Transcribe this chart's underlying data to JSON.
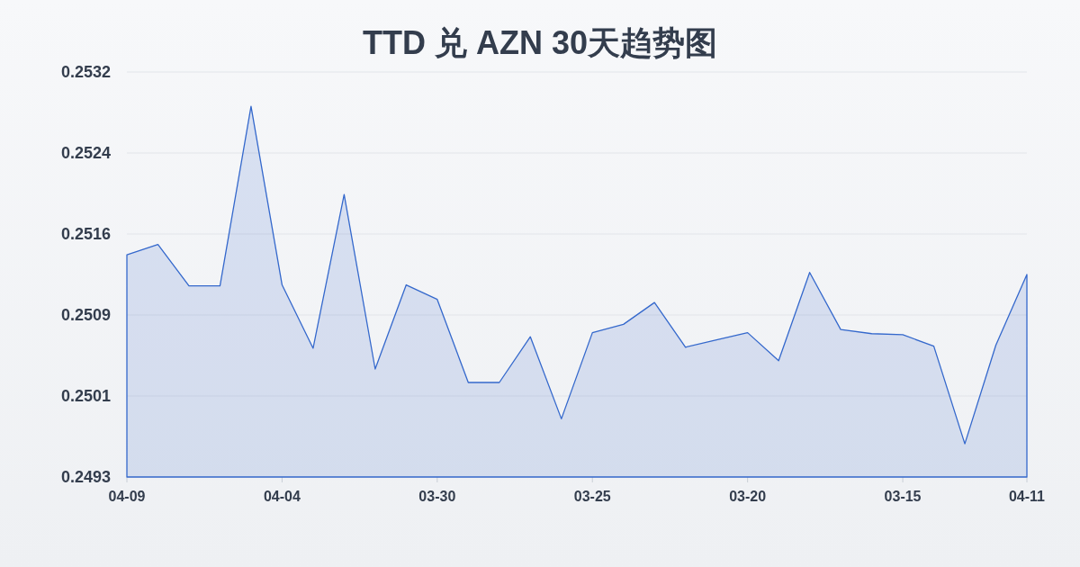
{
  "chart_data": {
    "type": "area",
    "title": "TTD 兑 AZN 30天趋势图",
    "categories": [
      "04-09",
      null,
      null,
      null,
      null,
      "04-04",
      null,
      null,
      null,
      null,
      "03-30",
      null,
      null,
      null,
      null,
      "03-25",
      null,
      null,
      null,
      null,
      "03-20",
      null,
      null,
      null,
      null,
      "03-15",
      null,
      null,
      null,
      "04-11"
    ],
    "values": [
      0.25144,
      0.25154,
      0.25114,
      0.25114,
      0.25287,
      0.25115,
      0.25054,
      0.25202,
      0.25034,
      0.25115,
      0.25101,
      0.25021,
      0.25021,
      0.25065,
      0.24986,
      0.25069,
      0.25077,
      0.25098,
      0.25055,
      0.25062,
      0.25069,
      0.25042,
      0.25127,
      0.25072,
      0.25068,
      0.25067,
      0.25056,
      0.24962,
      0.25057,
      0.25125
    ],
    "color": "#3468cc",
    "ylim": [
      0.2493,
      0.2532
    ],
    "yticks": [
      0.2493,
      {
        "value": 0.25008,
        "label": "0.2501"
      },
      {
        "value": 0.25086,
        "label": "0.2509"
      },
      {
        "value": 0.25164,
        "label": "0.2516"
      },
      {
        "value": 0.25242,
        "label": "0.2524"
      },
      0.2532
    ],
    "grid": "y"
  }
}
